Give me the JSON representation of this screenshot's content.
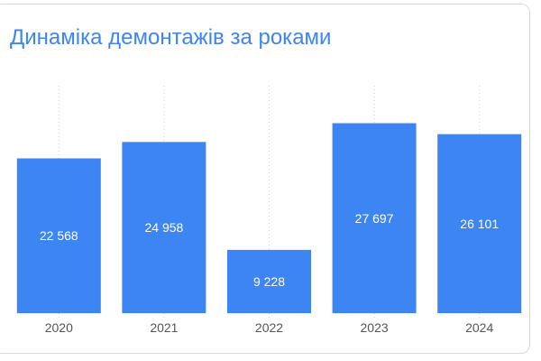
{
  "chart_data": {
    "type": "bar",
    "title": "Динаміка демонтажів за роками",
    "categories": [
      "2020",
      "2021",
      "2022",
      "2023",
      "2024"
    ],
    "values": [
      22568,
      24958,
      9228,
      27697,
      26101
    ],
    "value_labels": [
      "22 568",
      "24 958",
      "9 228",
      "27 697",
      "26 101"
    ],
    "xlabel": "",
    "ylabel": "",
    "ylim": [
      0,
      30000
    ],
    "grid": true,
    "bar_color": "#3d85f2",
    "title_color": "#3d85f2"
  }
}
